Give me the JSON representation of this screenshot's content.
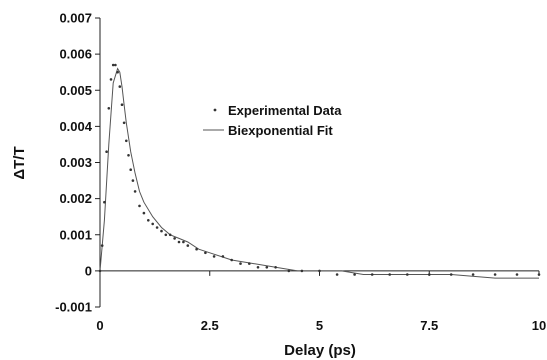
{
  "chart_data": {
    "type": "scatter",
    "title": "",
    "xlabel": "Delay (ps)",
    "ylabel": "ΔT/T",
    "xlim": [
      0,
      10
    ],
    "ylim": [
      -0.001,
      0.007
    ],
    "x_ticks": [
      "0",
      "2.5",
      "5",
      "7.5",
      "10"
    ],
    "y_ticks": [
      "-0.001",
      "0",
      "0.001",
      "0.002",
      "0.003",
      "0.004",
      "0.005",
      "0.006",
      "0.007"
    ],
    "grid": false,
    "legend_position": "upper-center",
    "colors": {
      "points": "#333333",
      "fit": "#555555",
      "axes": "#222222"
    },
    "series": [
      {
        "name": "Experimental Data",
        "style": "points",
        "x": [
          0.0,
          0.05,
          0.1,
          0.15,
          0.2,
          0.25,
          0.3,
          0.35,
          0.4,
          0.45,
          0.5,
          0.55,
          0.6,
          0.65,
          0.7,
          0.75,
          0.8,
          0.9,
          1.0,
          1.1,
          1.2,
          1.3,
          1.4,
          1.5,
          1.6,
          1.7,
          1.8,
          1.9,
          2.0,
          2.2,
          2.4,
          2.6,
          2.8,
          3.0,
          3.2,
          3.4,
          3.6,
          3.8,
          4.0,
          4.3,
          4.6,
          5.0,
          5.4,
          5.8,
          6.2,
          6.6,
          7.0,
          7.5,
          8.0,
          8.5,
          9.0,
          9.5,
          10.0
        ],
        "y": [
          0.0,
          0.0007,
          0.0019,
          0.0033,
          0.0045,
          0.0053,
          0.0057,
          0.0057,
          0.0055,
          0.0051,
          0.0046,
          0.0041,
          0.0036,
          0.0032,
          0.0028,
          0.0025,
          0.0022,
          0.0018,
          0.0016,
          0.0014,
          0.0013,
          0.0012,
          0.0011,
          0.001,
          0.001,
          0.0009,
          0.0008,
          0.0008,
          0.0007,
          0.0006,
          0.0005,
          0.0004,
          0.0004,
          0.0003,
          0.0002,
          0.0002,
          0.0001,
          0.0001,
          0.0001,
          0.0,
          0.0,
          0.0,
          -0.0001,
          -0.0001,
          -0.0001,
          -0.0001,
          -0.0001,
          -0.0001,
          -0.0001,
          -0.0001,
          -0.0001,
          -0.0001,
          -0.0001
        ]
      },
      {
        "name": "Biexponential Fit",
        "style": "line",
        "x": [
          0.0,
          0.1,
          0.2,
          0.3,
          0.4,
          0.45,
          0.5,
          0.55,
          0.6,
          0.7,
          0.8,
          0.9,
          1.0,
          1.2,
          1.4,
          1.6,
          1.8,
          2.0,
          2.25,
          2.5,
          3.0,
          3.5,
          4.0,
          4.5,
          5.0,
          5.5,
          6.0,
          7.0,
          8.0,
          9.0,
          10.0
        ],
        "y": [
          0.0,
          0.0014,
          0.0035,
          0.0052,
          0.0056,
          0.0055,
          0.0051,
          0.0046,
          0.0041,
          0.0033,
          0.0027,
          0.0022,
          0.0019,
          0.0015,
          0.0012,
          0.001,
          0.0009,
          0.0008,
          0.0006,
          0.0005,
          0.0003,
          0.0002,
          0.0001,
          0.0,
          0.0,
          0.0,
          -0.0001,
          -0.0001,
          -0.0001,
          -0.0002,
          -0.0002
        ]
      }
    ]
  }
}
